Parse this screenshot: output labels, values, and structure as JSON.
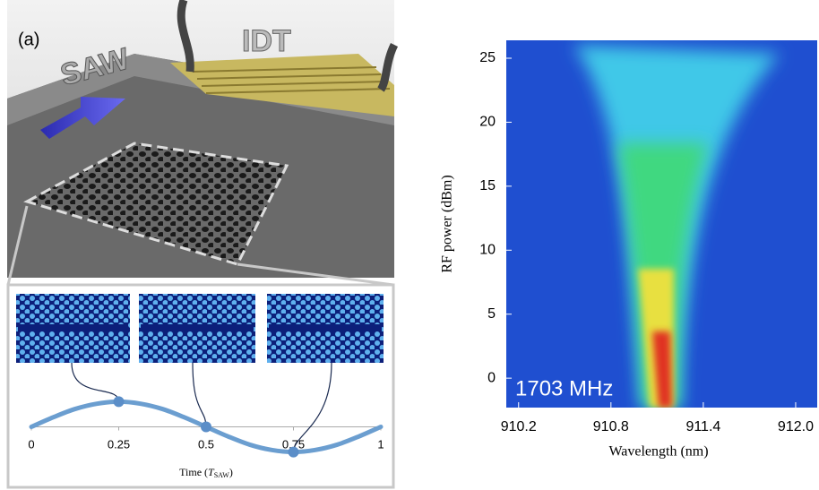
{
  "chart_data": [
    {
      "type": "line",
      "panel": "(a)",
      "labels": [
        "SAW",
        "IDT"
      ],
      "xlabel": {
        "prefix": "Time (",
        "symbol": "T",
        "subscript": "SAW",
        "suffix": ")"
      },
      "xlim": [
        0,
        1
      ],
      "ylim": [
        -1.3,
        1.3
      ],
      "xticks": [
        0,
        0.25,
        0.5,
        {
          "value": 0.75,
          "label": "0.75"
        },
        1
      ],
      "series": [
        {
          "color": "#6b9ed0",
          "x": [
            0,
            0.0625,
            0.125,
            0.1875,
            0.25,
            0.3125,
            0.375,
            0.4375,
            0.5,
            0.5625,
            0.625,
            0.6875,
            0.75,
            0.8125,
            0.875,
            0.9375,
            1
          ],
          "values": [
            0,
            0.38,
            0.71,
            0.92,
            1,
            0.92,
            0.71,
            0.38,
            0,
            -0.38,
            -0.71,
            -0.92,
            -1,
            -0.92,
            -0.71,
            -0.38,
            0
          ]
        },
        {
          "color": "#5b8ec8",
          "x": [
            0.25,
            0.5,
            0.75
          ],
          "values": [
            1,
            0,
            -1
          ]
        }
      ]
    },
    {
      "type": "heatmap",
      "xlabel": "Wavelength (nm)",
      "ylabel": "RF power (dBm)",
      "annotation": "1703 MHz",
      "xlim": [
        910.12,
        912.14
      ],
      "ylim": [
        -2.3,
        26.4
      ],
      "xticks": [
        910.2,
        910.8,
        911.4,
        {
          "value": 912,
          "label": "912.0"
        }
      ],
      "yticks": [
        0,
        5,
        10,
        15,
        20,
        25
      ]
    }
  ]
}
